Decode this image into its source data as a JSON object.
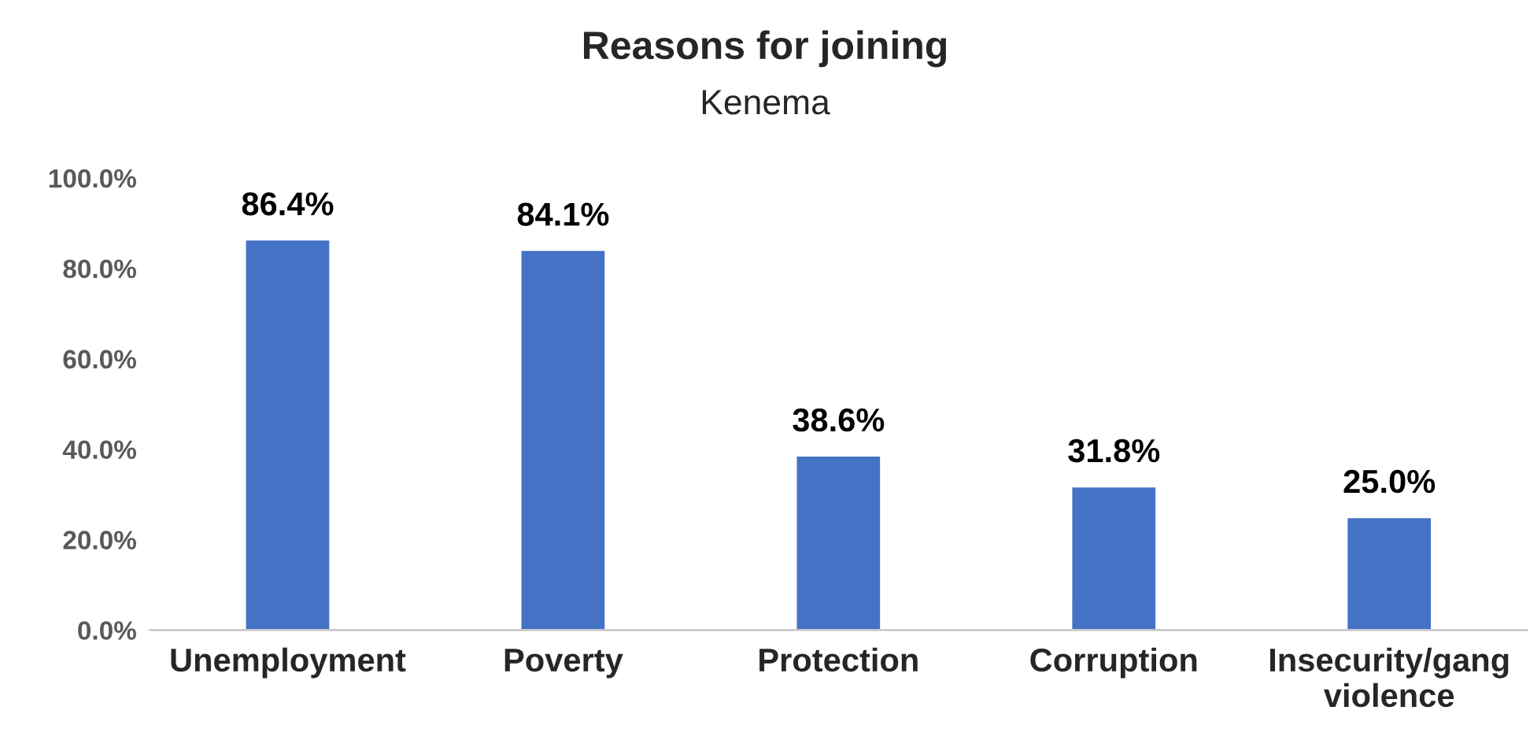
{
  "chart_data": {
    "type": "bar",
    "title": "Reasons for joining",
    "subtitle": "Kenema",
    "categories": [
      "Unemployment",
      "Poverty",
      "Protection",
      "Corruption",
      "Insecurity/gang violence"
    ],
    "values": [
      86.4,
      84.1,
      38.6,
      31.8,
      25.0
    ],
    "color": "#4472c4",
    "value_labels": [
      "86.4%",
      "84.1%",
      "38.6%",
      "31.8%",
      "25.0%"
    ],
    "ylim": [
      0,
      100
    ],
    "yticks": [
      {
        "value": 0,
        "label": "0.0%"
      },
      {
        "value": 20,
        "label": "20.0%"
      },
      {
        "value": 40,
        "label": "40.0%"
      },
      {
        "value": 60,
        "label": "60.0%"
      },
      {
        "value": 80,
        "label": "80.0%"
      },
      {
        "value": 100,
        "label": "100.0%"
      }
    ],
    "grid": false,
    "legend": false
  }
}
